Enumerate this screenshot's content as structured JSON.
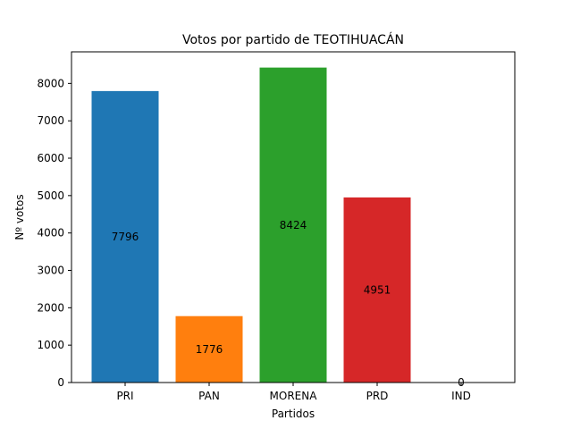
{
  "chart_data": {
    "type": "bar",
    "title": "Votos por partido de TEOTIHUACÁN",
    "xlabel": "Partidos",
    "ylabel": "Nº votos",
    "categories": [
      "PRI",
      "PAN",
      "MORENA",
      "PRD",
      "IND"
    ],
    "values": [
      7796,
      1776,
      8424,
      4951,
      0
    ],
    "colors": [
      "#1f77b4",
      "#ff7f0e",
      "#2ca02c",
      "#d62728",
      "#9467bd"
    ],
    "ylim": [
      0,
      8845
    ],
    "yticks": [
      0,
      1000,
      2000,
      3000,
      4000,
      5000,
      6000,
      7000,
      8000
    ],
    "grid": false,
    "legend": "none"
  }
}
